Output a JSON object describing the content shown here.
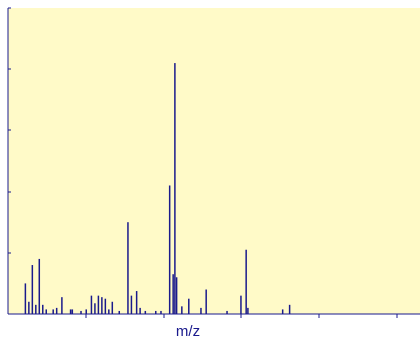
{
  "chart_data": {
    "type": "bar",
    "title": "",
    "xlabel": "m/z",
    "ylabel": "",
    "grid": false,
    "legend": "none",
    "colors": {
      "plot_background": "#fffac8",
      "bars": "#1a1a8c",
      "axis": "#1a1a8c"
    },
    "x_ticks": 6,
    "y_ticks": 5,
    "peaks": [
      {
        "x": 10,
        "y": 10
      },
      {
        "x": 12,
        "y": 4
      },
      {
        "x": 14,
        "y": 16
      },
      {
        "x": 16,
        "y": 3
      },
      {
        "x": 18,
        "y": 18
      },
      {
        "x": 20,
        "y": 3
      },
      {
        "x": 22,
        "y": 1.5
      },
      {
        "x": 26,
        "y": 1.5
      },
      {
        "x": 28,
        "y": 2
      },
      {
        "x": 31,
        "y": 5.5
      },
      {
        "x": 36,
        "y": 1.5
      },
      {
        "x": 37,
        "y": 1.5
      },
      {
        "x": 42,
        "y": 1
      },
      {
        "x": 45,
        "y": 1.5
      },
      {
        "x": 48,
        "y": 6
      },
      {
        "x": 50,
        "y": 3.5
      },
      {
        "x": 52,
        "y": 6
      },
      {
        "x": 54,
        "y": 5.5
      },
      {
        "x": 56,
        "y": 5
      },
      {
        "x": 58,
        "y": 1.5
      },
      {
        "x": 60,
        "y": 4
      },
      {
        "x": 64,
        "y": 1
      },
      {
        "x": 69,
        "y": 30
      },
      {
        "x": 71,
        "y": 6
      },
      {
        "x": 74,
        "y": 7.5
      },
      {
        "x": 76,
        "y": 2
      },
      {
        "x": 79,
        "y": 1
      },
      {
        "x": 85,
        "y": 1
      },
      {
        "x": 88,
        "y": 1
      },
      {
        "x": 93,
        "y": 42
      },
      {
        "x": 95,
        "y": 13
      },
      {
        "x": 96,
        "y": 82
      },
      {
        "x": 97,
        "y": 12
      },
      {
        "x": 100,
        "y": 2.5
      },
      {
        "x": 104,
        "y": 5
      },
      {
        "x": 111,
        "y": 2
      },
      {
        "x": 114,
        "y": 8
      },
      {
        "x": 126,
        "y": 1
      },
      {
        "x": 134,
        "y": 6
      },
      {
        "x": 137,
        "y": 21
      },
      {
        "x": 138,
        "y": 2
      },
      {
        "x": 158,
        "y": 1.5
      },
      {
        "x": 162,
        "y": 3
      }
    ],
    "xlim": [
      0,
      237
    ],
    "ylim": [
      0,
      100
    ]
  }
}
